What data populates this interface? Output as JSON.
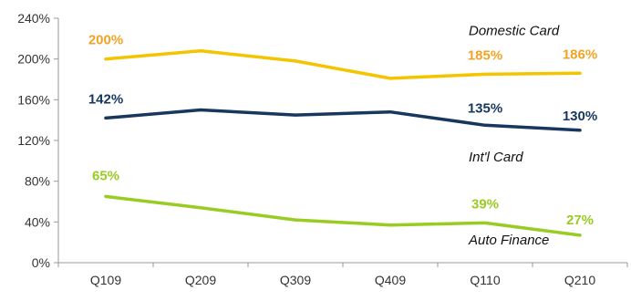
{
  "chart_data": {
    "type": "line",
    "categories": [
      "Q109",
      "Q209",
      "Q309",
      "Q409",
      "Q110",
      "Q210"
    ],
    "ylim": [
      0,
      240
    ],
    "yticks": [
      0,
      40,
      80,
      120,
      160,
      200,
      240
    ],
    "ytick_labels": [
      "0%",
      "40%",
      "80%",
      "120%",
      "160%",
      "200%",
      "240%"
    ],
    "grid": false,
    "series": [
      {
        "name": "Domestic Card",
        "color": "#f5c400",
        "label_color": "#f2a324",
        "values": [
          200,
          208,
          198,
          181,
          185,
          186
        ],
        "data_labels": [
          {
            "index": 0,
            "text": "200%"
          },
          {
            "index": 4,
            "text": "185%"
          },
          {
            "index": 5,
            "text": "186%"
          }
        ]
      },
      {
        "name": "Int'l Card",
        "color": "#17375e",
        "label_color": "#17375e",
        "values": [
          142,
          150,
          145,
          148,
          135,
          130
        ],
        "data_labels": [
          {
            "index": 0,
            "text": "142%"
          },
          {
            "index": 4,
            "text": "135%"
          },
          {
            "index": 5,
            "text": "130%"
          }
        ]
      },
      {
        "name": "Auto Finance",
        "color": "#99cc22",
        "label_color": "#99cc22",
        "values": [
          65,
          54,
          42,
          37,
          39,
          27
        ],
        "data_labels": [
          {
            "index": 0,
            "text": "65%"
          },
          {
            "index": 4,
            "text": "39%"
          },
          {
            "index": 5,
            "text": "27%"
          }
        ]
      }
    ]
  }
}
